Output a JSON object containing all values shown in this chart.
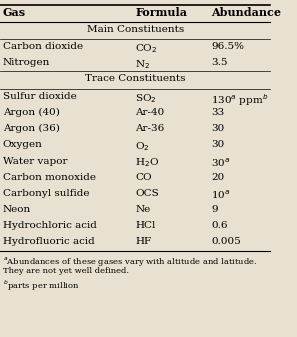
{
  "header": [
    "Gas",
    "Formula",
    "Abundance"
  ],
  "section1_label": "Main Constituents",
  "main_rows": [
    {
      "gas": "Carbon dioxide",
      "formula": "CO$_2$",
      "abundance": "96.5%"
    },
    {
      "gas": "Nitrogen",
      "formula": "N$_2$",
      "abundance": "3.5"
    }
  ],
  "section2_label": "Trace Constituents",
  "trace_rows": [
    {
      "gas": "Sulfur dioxide",
      "formula": "SO$_2$",
      "abundance": "130$^a$ ppm$^b$"
    },
    {
      "gas": "Argon (40)",
      "formula": "Ar-40",
      "abundance": "33"
    },
    {
      "gas": "Argon (36)",
      "formula": "Ar-36",
      "abundance": "30"
    },
    {
      "gas": "Oxygen",
      "formula": "O$_2$",
      "abundance": "30"
    },
    {
      "gas": "Water vapor",
      "formula": "H$_2$O",
      "abundance": "30$^a$"
    },
    {
      "gas": "Carbon monoxide",
      "formula": "CO",
      "abundance": "20"
    },
    {
      "gas": "Carbonyl sulfide",
      "formula": "OCS",
      "abundance": "10$^a$"
    },
    {
      "gas": "Neon",
      "formula": "Ne",
      "abundance": "9"
    },
    {
      "gas": "Hydrochloric acid",
      "formula": "HCl",
      "abundance": "0.6"
    },
    {
      "gas": "Hydrofluoric acid",
      "formula": "HF",
      "abundance": "0.005"
    }
  ],
  "footnotes": [
    "$^a$Abundances of these gases vary with altitude and latitude.",
    "They are not yet well defined.",
    "$^b$parts per million"
  ],
  "bg_color": "#e8e0d0",
  "text_color": "#000000",
  "font_size": 7.5
}
